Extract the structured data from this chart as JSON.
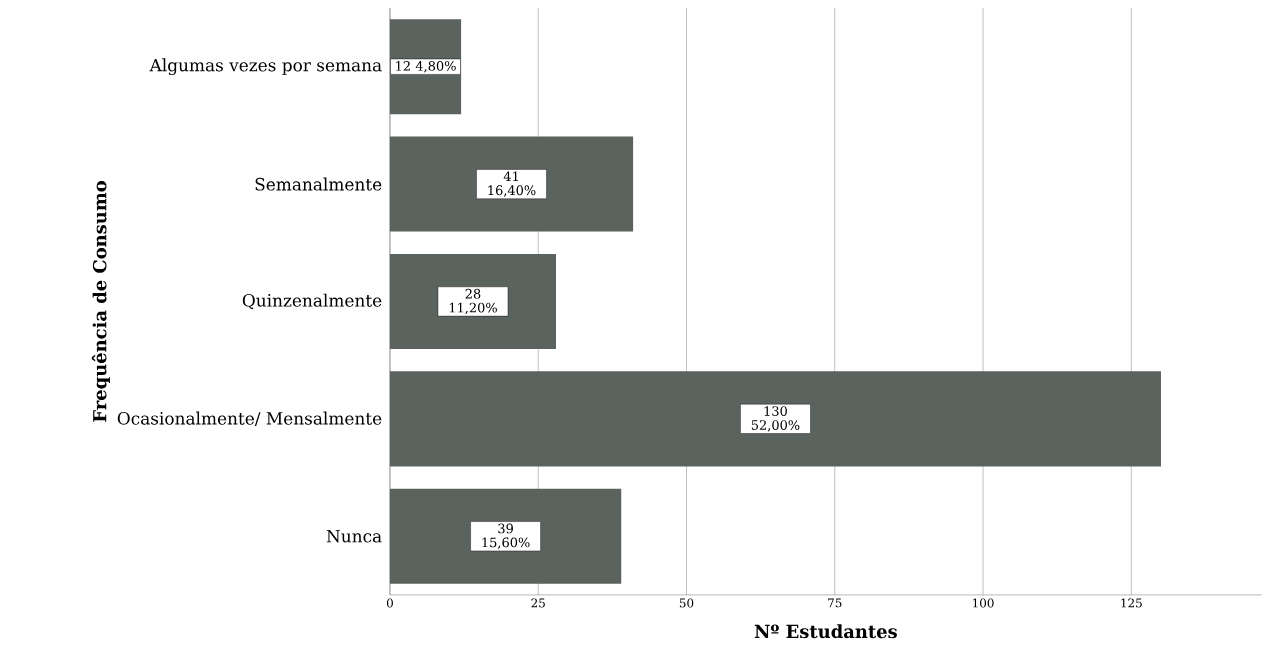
{
  "chart_data": {
    "type": "bar",
    "orientation": "horizontal",
    "categories": [
      "Algumas vezes por semana",
      "Semanalmente",
      "Quinzenalmente",
      "Ocasionalmente/ Mensalmente",
      "Nunca"
    ],
    "values": [
      12,
      41,
      28,
      130,
      39
    ],
    "value_labels": [
      "12 4,80%",
      "41 16,40%",
      "28 11,20%",
      "130 52,00%",
      "39 15,60%"
    ],
    "color": "#5a635e",
    "xlim": [
      0,
      147
    ],
    "xticks": [
      0,
      25,
      50,
      75,
      100,
      125
    ],
    "grid": "x",
    "xlabel": "Nº Estudantes",
    "ylabel": "Frequência de Consumo"
  }
}
